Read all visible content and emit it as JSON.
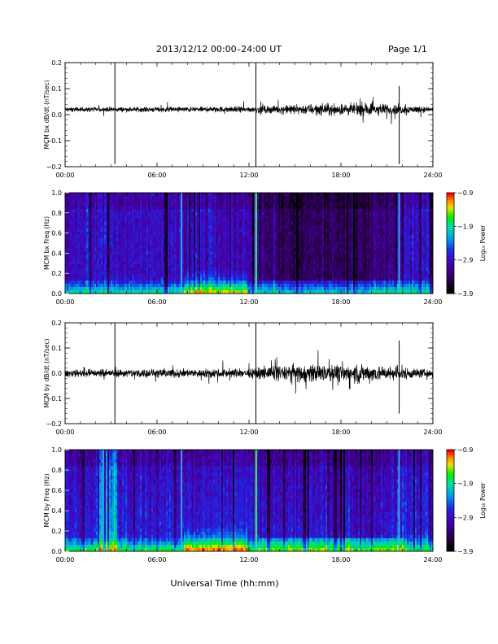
{
  "header": {
    "title": "2013/12/12  00:00–24:00 UT",
    "page": "Page 1/1"
  },
  "colors": {
    "axis": "#000000",
    "trace": "#000000",
    "spectrogram_low": "#000000",
    "spectrogram_high": "#ff0000"
  },
  "chart_data": [
    {
      "type": "line",
      "id": "bx-dbdt",
      "ylabel": "MCM bx dB/dt (nT/sec)",
      "ylim": [
        -0.2,
        0.2
      ],
      "yticks": [
        0.2,
        0.1,
        0.0,
        -0.1,
        -0.2
      ],
      "ytick_labels": [
        "0.2",
        "0.1",
        "0.0",
        "−0.1",
        "−0.2"
      ],
      "xlim": [
        "00:00",
        "24:00"
      ],
      "xtick_labels": [
        "00:00",
        "06:00",
        "12:00",
        "18:00",
        "24:00"
      ],
      "baseline": 0.02,
      "spikes": [
        {
          "time_h": 3.25,
          "max": 0.21,
          "min": -0.19
        },
        {
          "time_h": 12.45,
          "max": 0.21,
          "min": -0.21
        },
        {
          "time_h": 21.8,
          "max": 0.11,
          "min": -0.19
        }
      ],
      "activity_envelope": [
        {
          "time_h": 0,
          "amp": 0.012
        },
        {
          "time_h": 6,
          "amp": 0.014
        },
        {
          "time_h": 12,
          "amp": 0.016
        },
        {
          "time_h": 16,
          "amp": 0.03
        },
        {
          "time_h": 20,
          "amp": 0.035
        },
        {
          "time_h": 24,
          "amp": 0.014
        }
      ]
    },
    {
      "type": "heatmap",
      "id": "bx-freq",
      "ylabel": "MCM bx Freq (Hz)",
      "ylim": [
        0.0,
        1.0
      ],
      "ytick_labels": [
        "1.0",
        "0.8",
        "0.6",
        "0.4",
        "0.2",
        "0.0"
      ],
      "xlim": [
        "00:00",
        "24:00"
      ],
      "xtick_labels": [
        "00:00",
        "06:00",
        "12:00",
        "18:00",
        "24:00"
      ],
      "colorbar": {
        "label": "Log₁₀ Power",
        "range": [
          -3.9,
          -0.9
        ],
        "tick_labels": [
          "−0.9",
          "−1.9",
          "−2.9",
          "−3.9"
        ]
      },
      "bright_lines_h": [
        7.6,
        12.45,
        21.8
      ]
    },
    {
      "type": "line",
      "id": "by-dbdt",
      "ylabel": "MCM by dB/dt (nT/sec)",
      "ylim": [
        -0.2,
        0.2
      ],
      "yticks": [
        0.2,
        0.1,
        0.0,
        -0.1,
        -0.2
      ],
      "ytick_labels": [
        "0.2",
        "0.1",
        "0.0",
        "−0.1",
        "−0.2"
      ],
      "xlim": [
        "00:00",
        "24:00"
      ],
      "xtick_labels": [
        "00:00",
        "06:00",
        "12:00",
        "18:00",
        "24:00"
      ],
      "baseline": 0.0,
      "spikes": [
        {
          "time_h": 3.25,
          "max": 0.21,
          "min": -0.2
        },
        {
          "time_h": 12.45,
          "max": 0.21,
          "min": -0.21
        },
        {
          "time_h": 21.8,
          "max": 0.13,
          "min": -0.16
        }
      ],
      "activity_envelope": [
        {
          "time_h": 0,
          "amp": 0.02
        },
        {
          "time_h": 6,
          "amp": 0.025
        },
        {
          "time_h": 12,
          "amp": 0.025
        },
        {
          "time_h": 15,
          "amp": 0.05
        },
        {
          "time_h": 20,
          "amp": 0.05
        },
        {
          "time_h": 24,
          "amp": 0.02
        }
      ]
    },
    {
      "type": "heatmap",
      "id": "by-freq",
      "ylabel": "MCM by Freq (Hz)",
      "ylim": [
        0.0,
        1.0
      ],
      "ytick_labels": [
        "1.0",
        "0.8",
        "0.6",
        "0.4",
        "0.2",
        "0.0"
      ],
      "xlim": [
        "00:00",
        "24:00"
      ],
      "xtick_labels": [
        "00:00",
        "06:00",
        "12:00",
        "18:00",
        "24:00"
      ],
      "colorbar": {
        "label": "Log₁₀ Power",
        "range": [
          -3.9,
          -0.9
        ],
        "tick_labels": [
          "−0.9",
          "−1.9",
          "−2.9",
          "−3.9"
        ]
      },
      "bright_lines_h": [
        2.5,
        7.6,
        12.45,
        21.8
      ]
    }
  ],
  "xlabel": "Universal Time (hh:mm)"
}
